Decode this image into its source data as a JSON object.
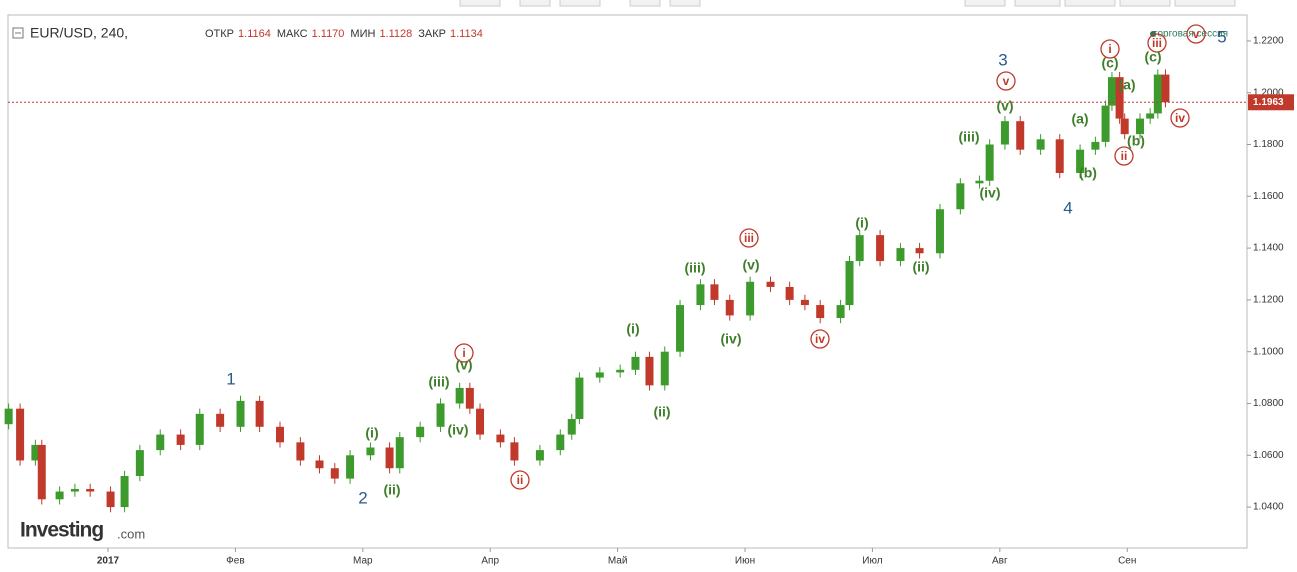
{
  "chart_data": {
    "type": "candlestick",
    "symbol": "EUR/USD, 240,",
    "ohlc_header": [
      {
        "label": "ОТКР",
        "value": "1.1164"
      },
      {
        "label": "МАКС",
        "value": "1.1170"
      },
      {
        "label": "МИН",
        "value": "1.1128"
      },
      {
        "label": "ЗАКР",
        "value": "1.1134"
      }
    ],
    "session_label": "торговая сессия",
    "logo": {
      "name": "Investing",
      "suffix": ".com"
    },
    "up_color": "#3d9a2d",
    "down_color": "#c0392b",
    "x": [
      -0.78,
      -0.69,
      -0.57,
      -0.52,
      -0.38,
      -0.26,
      -0.14,
      0.02,
      0.13,
      0.25,
      0.41,
      0.57,
      0.72,
      0.88,
      1.04,
      1.19,
      1.35,
      1.51,
      1.66,
      1.78,
      1.9,
      2.06,
      2.21,
      2.29,
      2.45,
      2.61,
      2.76,
      2.84,
      2.92,
      3.08,
      3.19,
      3.39,
      3.55,
      3.64,
      3.7,
      3.86,
      4.02,
      4.14,
      4.25,
      4.37,
      4.49,
      4.65,
      4.76,
      4.88,
      5.04,
      5.2,
      5.35,
      5.47,
      5.59,
      5.75,
      5.82,
      5.9,
      6.06,
      6.22,
      6.37,
      6.53,
      6.69,
      6.84,
      6.92,
      7.04,
      7.16,
      7.32,
      7.47,
      7.63,
      7.75,
      7.83,
      7.88,
      7.94,
      7.98,
      8.1,
      8.18,
      8.24,
      8.3
    ],
    "open": [
      1.072,
      1.078,
      1.058,
      1.064,
      1.043,
      1.046,
      1.047,
      1.046,
      1.04,
      1.052,
      1.062,
      1.068,
      1.064,
      1.076,
      1.071,
      1.081,
      1.071,
      1.065,
      1.058,
      1.055,
      1.051,
      1.06,
      1.063,
      1.055,
      1.067,
      1.071,
      1.08,
      1.086,
      1.078,
      1.068,
      1.065,
      1.058,
      1.062,
      1.068,
      1.074,
      1.09,
      1.092,
      1.093,
      1.098,
      1.087,
      1.1,
      1.118,
      1.126,
      1.12,
      1.114,
      1.127,
      1.125,
      1.12,
      1.118,
      1.113,
      1.118,
      1.135,
      1.145,
      1.135,
      1.14,
      1.138,
      1.155,
      1.165,
      1.166,
      1.18,
      1.189,
      1.178,
      1.182,
      1.169,
      1.178,
      1.181,
      1.195,
      1.206,
      1.19,
      1.184,
      1.19,
      1.192,
      1.207
    ],
    "high": [
      1.08,
      1.08,
      1.066,
      1.066,
      1.048,
      1.049,
      1.049,
      1.048,
      1.054,
      1.064,
      1.07,
      1.07,
      1.078,
      1.078,
      1.083,
      1.083,
      1.073,
      1.067,
      1.06,
      1.057,
      1.062,
      1.065,
      1.065,
      1.069,
      1.073,
      1.082,
      1.088,
      1.088,
      1.08,
      1.07,
      1.067,
      1.064,
      1.07,
      1.076,
      1.092,
      1.094,
      1.095,
      1.1,
      1.1,
      1.102,
      1.12,
      1.128,
      1.128,
      1.122,
      1.129,
      1.129,
      1.127,
      1.122,
      1.12,
      1.12,
      1.137,
      1.147,
      1.147,
      1.142,
      1.142,
      1.157,
      1.167,
      1.168,
      1.182,
      1.191,
      1.191,
      1.184,
      1.184,
      1.18,
      1.183,
      1.197,
      1.208,
      1.208,
      1.192,
      1.192,
      1.194,
      1.209,
      1.209
    ],
    "low": [
      1.07,
      1.056,
      1.056,
      1.041,
      1.041,
      1.044,
      1.044,
      1.038,
      1.038,
      1.05,
      1.06,
      1.062,
      1.062,
      1.069,
      1.069,
      1.069,
      1.063,
      1.056,
      1.053,
      1.049,
      1.049,
      1.058,
      1.053,
      1.053,
      1.065,
      1.069,
      1.078,
      1.076,
      1.066,
      1.063,
      1.056,
      1.056,
      1.06,
      1.066,
      1.072,
      1.088,
      1.09,
      1.091,
      1.085,
      1.085,
      1.098,
      1.116,
      1.118,
      1.112,
      1.112,
      1.123,
      1.118,
      1.116,
      1.111,
      1.111,
      1.116,
      1.133,
      1.133,
      1.133,
      1.136,
      1.136,
      1.153,
      1.163,
      1.164,
      1.178,
      1.176,
      1.176,
      1.167,
      1.167,
      1.176,
      1.179,
      1.193,
      1.188,
      1.182,
      1.182,
      1.188,
      1.19,
      1.1943
    ],
    "close": [
      1.078,
      1.058,
      1.064,
      1.043,
      1.046,
      1.047,
      1.046,
      1.04,
      1.052,
      1.062,
      1.068,
      1.064,
      1.076,
      1.071,
      1.081,
      1.071,
      1.065,
      1.058,
      1.055,
      1.051,
      1.06,
      1.063,
      1.055,
      1.067,
      1.071,
      1.08,
      1.086,
      1.078,
      1.068,
      1.065,
      1.058,
      1.062,
      1.068,
      1.074,
      1.09,
      1.092,
      1.093,
      1.098,
      1.087,
      1.1,
      1.118,
      1.126,
      1.12,
      1.114,
      1.127,
      1.125,
      1.12,
      1.118,
      1.113,
      1.118,
      1.135,
      1.145,
      1.135,
      1.14,
      1.138,
      1.155,
      1.165,
      1.166,
      1.18,
      1.189,
      1.178,
      1.182,
      1.169,
      1.178,
      1.181,
      1.195,
      1.206,
      1.19,
      1.184,
      1.19,
      1.192,
      1.207,
      1.1963
    ],
    "last_price": 1.1963,
    "xlim": [
      -0.785,
      8.94
    ],
    "ylim": [
      1.0242,
      1.23
    ],
    "xticks": [
      {
        "value": 0,
        "label": "2017"
      },
      {
        "value": 1,
        "label": "Фев"
      },
      {
        "value": 2,
        "label": "Мар"
      },
      {
        "value": 3,
        "label": "Апр"
      },
      {
        "value": 4,
        "label": "Май"
      },
      {
        "value": 5,
        "label": "Июн"
      },
      {
        "value": 6,
        "label": "Июл"
      },
      {
        "value": 7,
        "label": "Авг"
      },
      {
        "value": 8,
        "label": "Сен"
      }
    ],
    "yticks": [
      {
        "value": 1.04,
        "label": "1.0400"
      },
      {
        "value": 1.06,
        "label": "1.0600"
      },
      {
        "value": 1.08,
        "label": "1.0800"
      },
      {
        "value": 1.1,
        "label": "1.1000"
      },
      {
        "value": 1.12,
        "label": "1.1200"
      },
      {
        "value": 1.14,
        "label": "1.1400"
      },
      {
        "value": 1.16,
        "label": "1.1600"
      },
      {
        "value": 1.18,
        "label": "1.1800"
      },
      {
        "value": 1.2,
        "label": "1.2000"
      },
      {
        "value": 1.22,
        "label": "1.2200"
      }
    ],
    "annotations": [
      {
        "text": "1",
        "color": "#2b5a8a"
      },
      {
        "text": "2",
        "color": "#2b5a8a"
      },
      {
        "text": "3",
        "color": "#2b5a8a"
      },
      {
        "text": "4",
        "color": "#2b5a8a"
      },
      {
        "text": "5",
        "color": "#2b5a8a"
      },
      {
        "text": "i",
        "color": "#c0392b",
        "circled": true
      },
      {
        "text": "ii",
        "color": "#c0392b",
        "circled": true
      },
      {
        "text": "iii",
        "color": "#c0392b",
        "circled": true
      },
      {
        "text": "iv",
        "color": "#c0392b",
        "circled": true
      },
      {
        "text": "v",
        "color": "#c0392b",
        "circled": true
      },
      {
        "text": "i",
        "color": "#c0392b",
        "circled": true
      },
      {
        "text": "ii",
        "color": "#c0392b",
        "circled": true
      },
      {
        "text": "iii",
        "color": "#c0392b",
        "circled": true
      },
      {
        "text": "iv",
        "color": "#c0392b",
        "circled": true
      },
      {
        "text": "v",
        "color": "#c0392b",
        "circled": true
      },
      {
        "text": "(i)",
        "color": "#3e7d2a"
      },
      {
        "text": "(ii)",
        "color": "#3e7d2a"
      },
      {
        "text": "(iii)",
        "color": "#3e7d2a"
      },
      {
        "text": "(iv)",
        "color": "#3e7d2a"
      },
      {
        "text": "(v)",
        "color": "#3e7d2a"
      },
      {
        "text": "(i)",
        "color": "#3e7d2a"
      },
      {
        "text": "(ii)",
        "color": "#3e7d2a"
      },
      {
        "text": "(iii)",
        "color": "#3e7d2a"
      },
      {
        "text": "(iv)",
        "color": "#3e7d2a"
      },
      {
        "text": "(v)",
        "color": "#3e7d2a"
      },
      {
        "text": "(i)",
        "color": "#3e7d2a"
      },
      {
        "text": "(ii)",
        "color": "#3e7d2a"
      },
      {
        "text": "(iii)",
        "color": "#3e7d2a"
      },
      {
        "text": "(iv)",
        "color": "#3e7d2a"
      },
      {
        "text": "(v)",
        "color": "#3e7d2a"
      },
      {
        "text": "(a)",
        "color": "#3e7d2a"
      },
      {
        "text": "(b)",
        "color": "#3e7d2a"
      },
      {
        "text": "(c)",
        "color": "#3e7d2a"
      },
      {
        "text": "(a)",
        "color": "#3e7d2a"
      },
      {
        "text": "(b)",
        "color": "#3e7d2a"
      },
      {
        "text": "(c)",
        "color": "#3e7d2a"
      }
    ]
  }
}
